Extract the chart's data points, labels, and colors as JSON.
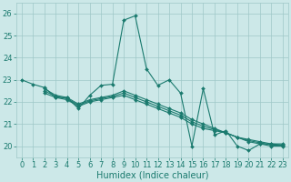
{
  "series": [
    [
      23.0,
      22.8,
      22.65,
      22.2,
      22.2,
      21.7,
      22.3,
      22.75,
      22.8,
      25.7,
      25.9,
      23.5,
      22.75,
      23.0,
      22.4,
      20.0,
      22.6,
      20.5,
      20.7,
      20.0,
      19.8,
      20.1,
      20.1,
      20.1
    ],
    [
      null,
      null,
      22.4,
      22.2,
      22.1,
      21.8,
      22.0,
      22.1,
      22.2,
      22.3,
      22.1,
      21.9,
      21.7,
      21.5,
      21.3,
      21.0,
      20.8,
      20.7,
      20.6,
      20.4,
      20.2,
      20.1,
      20.0,
      20.0
    ],
    [
      null,
      null,
      22.6,
      22.3,
      22.2,
      21.9,
      22.1,
      22.2,
      22.3,
      22.5,
      22.3,
      22.1,
      21.9,
      21.7,
      21.5,
      21.2,
      21.0,
      20.8,
      20.6,
      20.4,
      20.3,
      20.2,
      20.1,
      20.05
    ],
    [
      null,
      null,
      22.5,
      22.25,
      22.15,
      21.85,
      22.05,
      22.15,
      22.25,
      22.4,
      22.2,
      22.0,
      21.8,
      21.6,
      21.4,
      21.1,
      20.9,
      20.75,
      20.6,
      20.4,
      20.25,
      20.15,
      20.05,
      20.03
    ]
  ],
  "x": [
    0,
    1,
    2,
    3,
    4,
    5,
    6,
    7,
    8,
    9,
    10,
    11,
    12,
    13,
    14,
    15,
    16,
    17,
    18,
    19,
    20,
    21,
    22,
    23
  ],
  "line_color": "#1a7a6e",
  "bg_color": "#cce8e8",
  "grid_color": "#9fc8c8",
  "xlabel": "Humidex (Indice chaleur)",
  "ylim": [
    19.5,
    26.5
  ],
  "xlim": [
    -0.5,
    23.5
  ],
  "yticks": [
    20,
    21,
    22,
    23,
    24,
    25,
    26
  ],
  "xticks": [
    0,
    1,
    2,
    3,
    4,
    5,
    6,
    7,
    8,
    9,
    10,
    11,
    12,
    13,
    14,
    15,
    16,
    17,
    18,
    19,
    20,
    21,
    22,
    23
  ],
  "label_fontsize": 7,
  "tick_fontsize": 6
}
